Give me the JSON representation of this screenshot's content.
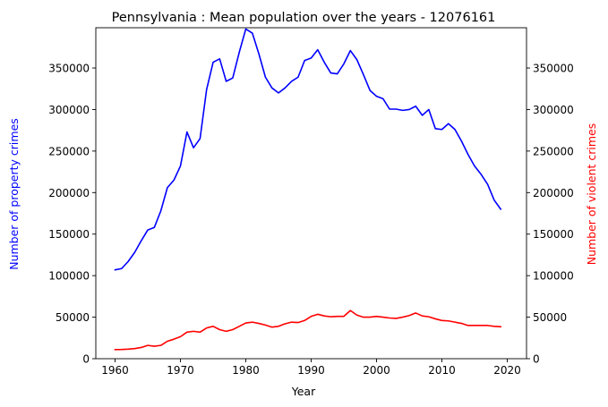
{
  "chart_data": {
    "type": "line",
    "title": "Pennsylvania : Mean population over the years - 12076161",
    "xlabel": "Year",
    "ylabel_left": "Number of property crimes",
    "ylabel_right": "Number of violent crimes",
    "xlim": [
      1957.05,
      2022.95
    ],
    "ylim": [
      0,
      398500
    ],
    "x_ticks": [
      1960,
      1970,
      1980,
      1990,
      2000,
      2010,
      2020
    ],
    "y_ticks": [
      0,
      50000,
      100000,
      150000,
      200000,
      250000,
      300000,
      350000
    ],
    "grid": false,
    "x": [
      1960,
      1961,
      1962,
      1963,
      1964,
      1965,
      1966,
      1967,
      1968,
      1969,
      1970,
      1971,
      1972,
      1973,
      1974,
      1975,
      1976,
      1977,
      1978,
      1979,
      1980,
      1981,
      1982,
      1983,
      1984,
      1985,
      1986,
      1987,
      1988,
      1989,
      1990,
      1991,
      1992,
      1993,
      1994,
      1995,
      1996,
      1997,
      1998,
      1999,
      2000,
      2001,
      2002,
      2003,
      2004,
      2005,
      2006,
      2007,
      2008,
      2009,
      2010,
      2011,
      2012,
      2013,
      2014,
      2015,
      2016,
      2017,
      2018,
      2019
    ],
    "series": [
      {
        "name": "Number of property crimes",
        "axis": "left",
        "color": "#0000ff",
        "values": [
          107000,
          108500,
          117000,
          128000,
          142000,
          155000,
          158000,
          178000,
          206000,
          215000,
          232000,
          273000,
          254000,
          265000,
          324000,
          357000,
          361000,
          334000,
          338000,
          369000,
          397000,
          392000,
          367000,
          339000,
          326000,
          320000,
          326000,
          334000,
          339000,
          359000,
          362000,
          372000,
          357000,
          344000,
          343000,
          355000,
          371000,
          360000,
          342000,
          323000,
          316000,
          313000,
          300500,
          300500,
          299000,
          300000,
          304000,
          293000,
          300000,
          277000,
          276000,
          283000,
          276000,
          262000,
          246000,
          232000,
          222000,
          210000,
          191000,
          180000
        ]
      },
      {
        "name": "Number of violent crimes",
        "axis": "right",
        "color": "#ff0000",
        "values": [
          11000,
          11100,
          11500,
          12200,
          13500,
          16000,
          15000,
          16000,
          21000,
          23500,
          26500,
          32000,
          33000,
          32000,
          37000,
          39000,
          35000,
          33000,
          35000,
          39000,
          43000,
          44000,
          42500,
          40500,
          38000,
          39000,
          42000,
          44000,
          43500,
          46000,
          51000,
          53500,
          51500,
          50500,
          51000,
          51000,
          58000,
          52500,
          50000,
          50000,
          51000,
          50000,
          49000,
          48500,
          50000,
          52000,
          55000,
          51500,
          50500,
          48000,
          46000,
          45500,
          44000,
          42500,
          40000,
          40000,
          40000,
          40000,
          39000,
          38500
        ]
      }
    ]
  }
}
